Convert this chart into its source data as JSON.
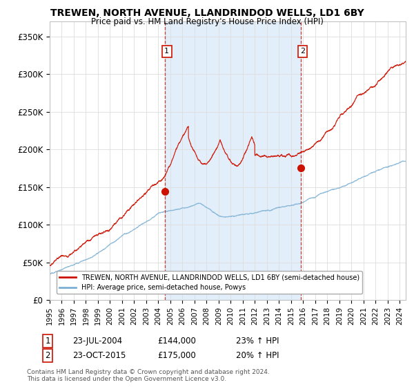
{
  "title": "TREWEN, NORTH AVENUE, LLANDRINDOD WELLS, LD1 6BY",
  "subtitle": "Price paid vs. HM Land Registry's House Price Index (HPI)",
  "ylabel_ticks": [
    "£0",
    "£50K",
    "£100K",
    "£150K",
    "£200K",
    "£250K",
    "£300K",
    "£350K"
  ],
  "ylim": [
    0,
    370000
  ],
  "xlim_start": 1995.0,
  "xlim_end": 2024.5,
  "hpi_color": "#7bafd4",
  "hpi_fill_color": "#d0e4f5",
  "price_color": "#cc1100",
  "marker1_date": 2004.55,
  "marker1_price": 144000,
  "marker2_date": 2015.8,
  "marker2_price": 175000,
  "legend_label1": "TREWEN, NORTH AVENUE, LLANDRINDOD WELLS, LD1 6BY (semi-detached house)",
  "legend_label2": "HPI: Average price, semi-detached house, Powys",
  "annotation1_date": "23-JUL-2004",
  "annotation1_price": "£144,000",
  "annotation1_hpi": "23% ↑ HPI",
  "annotation2_date": "23-OCT-2015",
  "annotation2_price": "£175,000",
  "annotation2_hpi": "20% ↑ HPI",
  "footer": "Contains HM Land Registry data © Crown copyright and database right 2024.\nThis data is licensed under the Open Government Licence v3.0.",
  "background_color": "#ffffff",
  "grid_color": "#dddddd"
}
